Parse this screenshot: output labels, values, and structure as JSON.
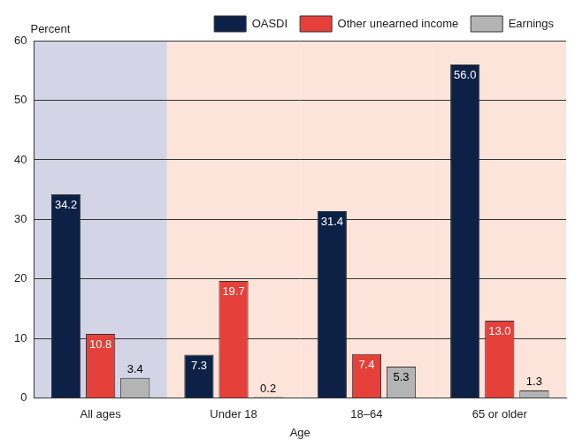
{
  "chart_data": {
    "type": "bar",
    "categories": [
      "All ages",
      "Under 18",
      "18–64",
      "65 or older"
    ],
    "series": [
      {
        "name": "OASDI",
        "color": "#0d2147",
        "values": [
          34.2,
          7.3,
          31.4,
          56.0
        ],
        "value_labels": [
          "34.2",
          "7.3",
          "31.4",
          "56.0"
        ]
      },
      {
        "name": "Other unearned income",
        "color": "#e5403a",
        "values": [
          10.8,
          19.7,
          7.4,
          13.0
        ],
        "value_labels": [
          "10.8",
          "19.7",
          "7.4",
          "13.0"
        ]
      },
      {
        "name": "Earnings",
        "color": "#b4b4b4",
        "values": [
          3.4,
          0.2,
          5.3,
          1.3
        ]
      }
    ],
    "x_label": "Age",
    "y_label": "Percent",
    "ylim": [
      0,
      60
    ],
    "yticks": [
      0,
      10,
      20,
      30,
      40,
      50,
      60
    ],
    "grid": true,
    "legend": "top",
    "data_labels": true
  }
}
